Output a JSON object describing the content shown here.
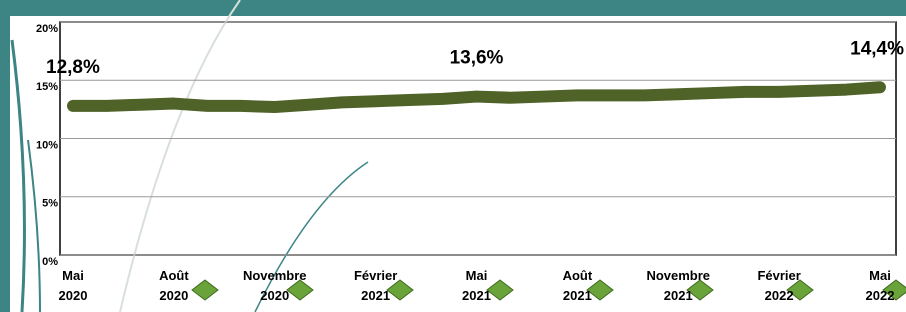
{
  "chart_data": {
    "type": "line",
    "categories": [
      "Mai 2020",
      null,
      null,
      "Août 2020",
      null,
      null,
      "Novembre 2020",
      null,
      null,
      "Février 2021",
      null,
      null,
      "Mai 2021",
      null,
      null,
      "Août 2021",
      null,
      null,
      "Novembre 2021",
      null,
      null,
      "Février 2022",
      null,
      null,
      "Mai 2022"
    ],
    "values": [
      12.8,
      12.8,
      12.9,
      13.0,
      12.8,
      12.8,
      12.7,
      12.9,
      13.1,
      13.2,
      13.3,
      13.4,
      13.6,
      13.5,
      13.6,
      13.7,
      13.7,
      13.7,
      13.8,
      13.9,
      14.0,
      14.0,
      14.1,
      14.2,
      14.4
    ],
    "value_labels": [
      "12,8%",
      null,
      null,
      null,
      null,
      null,
      null,
      null,
      null,
      null,
      null,
      null,
      "13,6%",
      null,
      null,
      null,
      null,
      null,
      null,
      null,
      null,
      null,
      null,
      null,
      "14,4%"
    ],
    "color": "#4f6228",
    "ylim": [
      0,
      20
    ],
    "yticks": [
      {
        "value": 0,
        "label": "0%"
      },
      {
        "value": 5,
        "label": "5%"
      },
      {
        "value": 10,
        "label": "10%"
      },
      {
        "value": 15,
        "label": "15%"
      },
      {
        "value": 20,
        "label": "20%"
      }
    ],
    "grid": true
  }
}
